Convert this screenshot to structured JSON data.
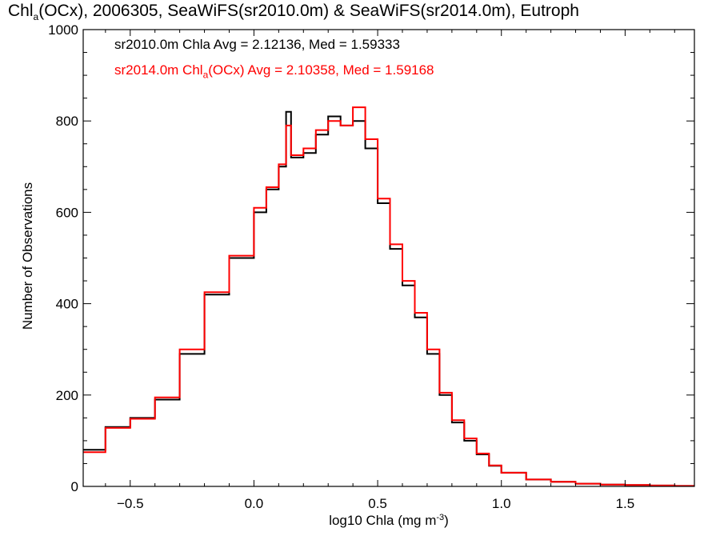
{
  "chart_data": {
    "type": "step-histogram",
    "title_parts": [
      "Chl",
      "a",
      "(OCx), 2006305, SeaWiFS(sr2010.0m) & SeaWiFS(sr2014.0m), Eutroph"
    ],
    "xlabel_parts": [
      "log10 Chla (mg m",
      "-3",
      ")"
    ],
    "ylabel": "Number of Observations",
    "xlim": [
      -0.69,
      1.78
    ],
    "ylim": [
      0,
      1000
    ],
    "xticks": [
      -0.5,
      0.0,
      0.5,
      1.0,
      1.5
    ],
    "xtick_labels": [
      "−0.5",
      "0.0",
      "0.5",
      "1.0",
      "1.5"
    ],
    "yticks": [
      0,
      200,
      400,
      600,
      800,
      1000
    ],
    "ytick_labels": [
      "0",
      "200",
      "400",
      "600",
      "800",
      "1000"
    ],
    "series": [
      {
        "legend_text": "sr2010.0m Chla Avg = 2.12136, Med = 1.59333",
        "color": "#000000",
        "x": [
          -0.69,
          -0.6,
          -0.5,
          -0.4,
          -0.3,
          -0.2,
          -0.1,
          0.0,
          0.05,
          0.1,
          0.13,
          0.15,
          0.2,
          0.25,
          0.3,
          0.35,
          0.4,
          0.45,
          0.5,
          0.55,
          0.6,
          0.65,
          0.7,
          0.75,
          0.8,
          0.85,
          0.9,
          0.95,
          1.0,
          1.1,
          1.2,
          1.3,
          1.4,
          1.5,
          1.6,
          1.7,
          1.78
        ],
        "y": [
          80,
          130,
          150,
          190,
          290,
          420,
          500,
          600,
          650,
          700,
          820,
          720,
          730,
          770,
          810,
          790,
          800,
          740,
          620,
          520,
          440,
          370,
          290,
          200,
          140,
          100,
          70,
          45,
          30,
          15,
          10,
          6,
          4,
          3,
          2,
          1,
          1
        ]
      },
      {
        "legend_parts": [
          "sr2014.0m Chl",
          "a",
          "(OCx) Avg = 2.10358, Med = 1.59168"
        ],
        "color": "#ff0000",
        "x": [
          -0.69,
          -0.6,
          -0.5,
          -0.4,
          -0.3,
          -0.2,
          -0.1,
          0.0,
          0.05,
          0.1,
          0.13,
          0.15,
          0.2,
          0.25,
          0.3,
          0.35,
          0.4,
          0.45,
          0.5,
          0.55,
          0.6,
          0.65,
          0.7,
          0.75,
          0.8,
          0.85,
          0.9,
          0.95,
          1.0,
          1.1,
          1.2,
          1.3,
          1.4,
          1.5,
          1.6,
          1.7,
          1.78
        ],
        "y": [
          75,
          128,
          148,
          195,
          300,
          425,
          505,
          610,
          655,
          705,
          790,
          725,
          740,
          780,
          800,
          790,
          830,
          760,
          630,
          530,
          450,
          380,
          300,
          205,
          145,
          105,
          72,
          46,
          30,
          15,
          10,
          6,
          4,
          3,
          2,
          1,
          1
        ]
      }
    ]
  }
}
